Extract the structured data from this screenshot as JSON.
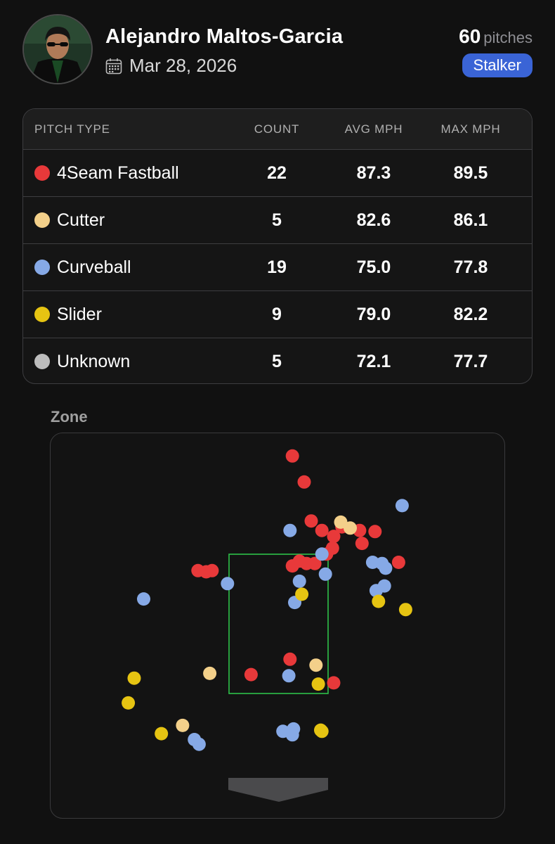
{
  "header": {
    "player_name": "Alejandro Maltos-Garcia",
    "date": "Mar 28, 2026",
    "pitch_count": "60",
    "pitch_count_label": "pitches",
    "badge": "Stalker",
    "avatar_icon": "player-photo",
    "date_icon": "calendar-icon"
  },
  "table": {
    "headers": [
      "PITCH TYPE",
      "COUNT",
      "AVG MPH",
      "MAX MPH"
    ],
    "rows": [
      {
        "type": "4Seam Fastball",
        "count": "22",
        "avg": "87.3",
        "max": "89.5",
        "color": "#e8393a"
      },
      {
        "type": "Cutter",
        "count": "5",
        "avg": "82.6",
        "max": "86.1",
        "color": "#f3d08a"
      },
      {
        "type": "Curveball",
        "count": "19",
        "avg": "75.0",
        "max": "77.8",
        "color": "#86a9e6"
      },
      {
        "type": "Slider",
        "count": "9",
        "avg": "79.0",
        "max": "82.2",
        "color": "#e6c412"
      },
      {
        "type": "Unknown",
        "count": "5",
        "avg": "72.1",
        "max": "77.7",
        "color": "#bdbdbd"
      }
    ]
  },
  "zone": {
    "label": "Zone",
    "strike_zone_color": "#2ec24a",
    "plate_color": "#4a4a4c",
    "pitches": [
      {
        "t": "4Seam Fastball",
        "x": 0.12,
        "y": 3.51
      },
      {
        "t": "4Seam Fastball",
        "x": 0.22,
        "y": 3.29
      },
      {
        "t": "4Seam Fastball",
        "x": 0.47,
        "y": 2.83
      },
      {
        "t": "4Seam Fastball",
        "x": 0.28,
        "y": 2.96
      },
      {
        "t": "4Seam Fastball",
        "x": 0.37,
        "y": 2.88
      },
      {
        "t": "4Seam Fastball",
        "x": 0.54,
        "y": 2.91
      },
      {
        "t": "4Seam Fastball",
        "x": 0.69,
        "y": 2.88
      },
      {
        "t": "4Seam Fastball",
        "x": 0.82,
        "y": 2.87
      },
      {
        "t": "4Seam Fastball",
        "x": 0.71,
        "y": 2.77
      },
      {
        "t": "4Seam Fastball",
        "x": 0.46,
        "y": 2.73
      },
      {
        "t": "4Seam Fastball",
        "x": 0.41,
        "y": 2.68
      },
      {
        "t": "4Seam Fastball",
        "x": 0.31,
        "y": 2.6
      },
      {
        "t": "4Seam Fastball",
        "x": 0.24,
        "y": 2.6
      },
      {
        "t": "4Seam Fastball",
        "x": 0.18,
        "y": 2.62
      },
      {
        "t": "4Seam Fastball",
        "x": 0.12,
        "y": 2.58
      },
      {
        "t": "4Seam Fastball",
        "x": 1.02,
        "y": 2.61
      },
      {
        "t": "4Seam Fastball",
        "x": -0.61,
        "y": 2.53
      },
      {
        "t": "4Seam Fastball",
        "x": -0.56,
        "y": 2.54
      },
      {
        "t": "4Seam Fastball",
        "x": -0.68,
        "y": 2.54
      },
      {
        "t": "4Seam Fastball",
        "x": 0.1,
        "y": 1.79
      },
      {
        "t": "4Seam Fastball",
        "x": -0.23,
        "y": 1.66
      },
      {
        "t": "4Seam Fastball",
        "x": 0.47,
        "y": 1.59
      },
      {
        "t": "Cutter",
        "x": 0.53,
        "y": 2.95
      },
      {
        "t": "Cutter",
        "x": 0.61,
        "y": 2.9
      },
      {
        "t": "Cutter",
        "x": 0.32,
        "y": 1.74
      },
      {
        "t": "Cutter",
        "x": -0.58,
        "y": 1.67
      },
      {
        "t": "Cutter",
        "x": -0.81,
        "y": 1.23
      },
      {
        "t": "Curveball",
        "x": 1.05,
        "y": 3.09
      },
      {
        "t": "Curveball",
        "x": 0.1,
        "y": 2.88
      },
      {
        "t": "Curveball",
        "x": 0.37,
        "y": 2.68
      },
      {
        "t": "Curveball",
        "x": 0.4,
        "y": 2.51
      },
      {
        "t": "Curveball",
        "x": 0.8,
        "y": 2.61
      },
      {
        "t": "Curveball",
        "x": 0.88,
        "y": 2.6
      },
      {
        "t": "Curveball",
        "x": 0.91,
        "y": 2.56
      },
      {
        "t": "Curveball",
        "x": 0.18,
        "y": 2.45
      },
      {
        "t": "Curveball",
        "x": -0.43,
        "y": 2.43
      },
      {
        "t": "Curveball",
        "x": 0.83,
        "y": 2.37
      },
      {
        "t": "Curveball",
        "x": 0.9,
        "y": 2.41
      },
      {
        "t": "Curveball",
        "x": -1.14,
        "y": 2.3
      },
      {
        "t": "Curveball",
        "x": 0.14,
        "y": 2.27
      },
      {
        "t": "Curveball",
        "x": 0.09,
        "y": 1.65
      },
      {
        "t": "Curveball",
        "x": 0.04,
        "y": 1.18
      },
      {
        "t": "Curveball",
        "x": 0.12,
        "y": 1.15
      },
      {
        "t": "Curveball",
        "x": -0.67,
        "y": 1.07
      },
      {
        "t": "Curveball",
        "x": -0.71,
        "y": 1.11
      },
      {
        "t": "Curveball",
        "x": 0.13,
        "y": 1.2
      },
      {
        "t": "Slider",
        "x": 0.2,
        "y": 2.34
      },
      {
        "t": "Slider",
        "x": 0.85,
        "y": 2.28
      },
      {
        "t": "Slider",
        "x": 1.08,
        "y": 2.21
      },
      {
        "t": "Slider",
        "x": -1.22,
        "y": 1.63
      },
      {
        "t": "Slider",
        "x": -1.27,
        "y": 1.42
      },
      {
        "t": "Slider",
        "x": -0.99,
        "y": 1.16
      },
      {
        "t": "Slider",
        "x": 0.34,
        "y": 1.58
      },
      {
        "t": "Slider",
        "x": 0.36,
        "y": 1.19
      },
      {
        "t": "Slider",
        "x": 0.37,
        "y": 1.18
      }
    ]
  }
}
